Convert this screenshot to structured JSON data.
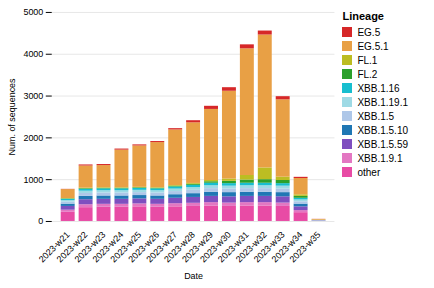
{
  "chart_data": {
    "type": "bar",
    "stacked": true,
    "xlabel": "Date",
    "ylabel": "Num. of sequences",
    "legend_title": "Lineage",
    "legend": "right",
    "grid": true,
    "categories": [
      "2023-w21",
      "2023-w22",
      "2023-w23",
      "2023-w24",
      "2023-w25",
      "2023-w26",
      "2023-w27",
      "2023-w28",
      "2023-w29",
      "2023-w30",
      "2023-w31",
      "2023-w32",
      "2023-w33",
      "2023-w34",
      "2023-w35"
    ],
    "ylim": [
      0,
      5000
    ],
    "yticks": [
      0,
      1000,
      2000,
      3000,
      4000,
      5000
    ],
    "series": [
      {
        "name": "other",
        "color": "#e84ba5",
        "values": [
          220,
          330,
          340,
          340,
          350,
          340,
          350,
          360,
          370,
          360,
          370,
          370,
          360,
          210,
          5
        ]
      },
      {
        "name": "XBB.1.9.1",
        "color": "#e377c2",
        "values": [
          50,
          70,
          70,
          70,
          70,
          70,
          75,
          75,
          80,
          80,
          80,
          80,
          80,
          50,
          3
        ]
      },
      {
        "name": "XBB.1.5.59",
        "color": "#7f4fbf",
        "values": [
          90,
          120,
          120,
          120,
          120,
          120,
          130,
          140,
          150,
          150,
          150,
          150,
          150,
          90,
          4
        ]
      },
      {
        "name": "XBB.1.5.10",
        "color": "#1f77b4",
        "values": [
          55,
          80,
          80,
          80,
          80,
          80,
          85,
          90,
          100,
          100,
          100,
          100,
          100,
          65,
          3
        ]
      },
      {
        "name": "XBB.1.5",
        "color": "#aec7e8",
        "values": [
          50,
          70,
          70,
          70,
          70,
          70,
          75,
          80,
          85,
          85,
          85,
          85,
          85,
          55,
          3
        ]
      },
      {
        "name": "XBB.1.19.1",
        "color": "#9edae5",
        "values": [
          35,
          55,
          55,
          55,
          55,
          55,
          60,
          65,
          70,
          70,
          70,
          70,
          70,
          45,
          3
        ]
      },
      {
        "name": "XBB.1.16",
        "color": "#17becf",
        "values": [
          30,
          45,
          45,
          45,
          45,
          45,
          50,
          55,
          60,
          60,
          60,
          60,
          60,
          40,
          3
        ]
      },
      {
        "name": "FL.2",
        "color": "#2ca02c",
        "values": [
          10,
          15,
          15,
          15,
          15,
          15,
          20,
          25,
          35,
          55,
          75,
          85,
          75,
          45,
          3
        ]
      },
      {
        "name": "FL.1",
        "color": "#bcbd22",
        "values": [
          8,
          12,
          12,
          12,
          12,
          12,
          15,
          20,
          30,
          55,
          110,
          280,
          80,
          38,
          3
        ]
      },
      {
        "name": "EG.5.1",
        "color": "#e8a045",
        "values": [
          215,
          530,
          530,
          900,
          990,
          1080,
          1330,
          1450,
          1700,
          2100,
          3030,
          3180,
          1850,
          390,
          18
        ]
      },
      {
        "name": "EG.5",
        "color": "#d62728",
        "values": [
          5,
          25,
          25,
          25,
          25,
          25,
          30,
          50,
          75,
          85,
          95,
          95,
          75,
          28,
          3
        ]
      }
    ]
  }
}
